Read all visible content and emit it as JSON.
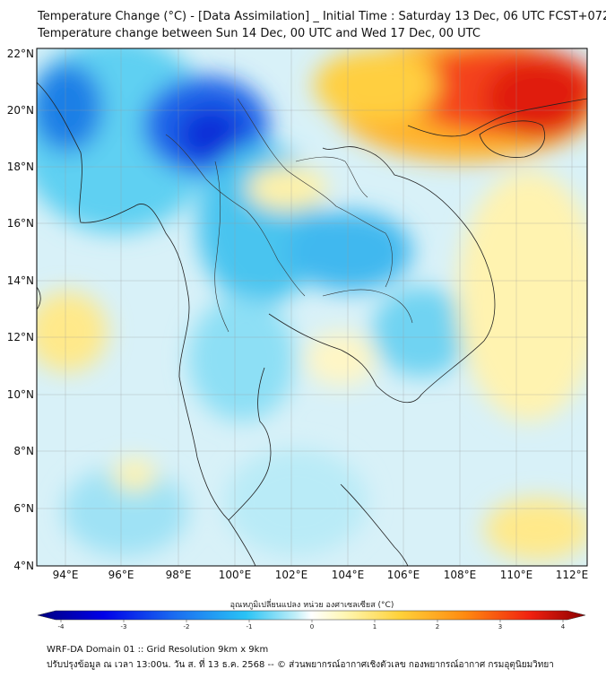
{
  "header": {
    "title": "Temperature Change (°C) - [Data Assimilation] _ Initial Time : Saturday 13 Dec, 06 UTC FCST+072",
    "subtitle": "Temperature change between Sun 14 Dec, 00 UTC and Wed 17 Dec, 00 UTC"
  },
  "map": {
    "lat_labels": [
      "22°N",
      "20°N",
      "18°N",
      "16°N",
      "14°N",
      "12°N",
      "10°N",
      "8°N",
      "6°N",
      "4°N"
    ],
    "lon_labels": [
      "94°E",
      "96°E",
      "98°E",
      "100°E",
      "102°E",
      "104°E",
      "106°E",
      "108°E",
      "110°E",
      "112°E"
    ]
  },
  "colorbar": {
    "label": "อุณหภูมิเปลี่ยนแปลง หน่วย องศาเซลเซียส (°C)",
    "ticks": [
      "-4",
      "-3",
      "-2",
      "-1",
      "0",
      "1",
      "2",
      "3",
      "4"
    ],
    "colors": [
      "#00007f",
      "#0000e8",
      "#1a6cf0",
      "#29c3f5",
      "#bfeef8",
      "#ffffff",
      "#fff7b5",
      "#ffd23a",
      "#ff8a10",
      "#f02010",
      "#8b0000"
    ]
  },
  "footer": {
    "line1": "WRF-DA Domain 01 :: Grid Resolution 9km x 9km",
    "line2": "ปรับปรุงข้อมูล ณ เวลา 13:00น. วัน ส. ที่ 13 ธ.ค. 2568 -- © ส่วนพยากรณ์อากาศเชิงตัวเลข กองพยากรณ์อากาศ กรมอุตุนิยมวิทยา"
  }
}
